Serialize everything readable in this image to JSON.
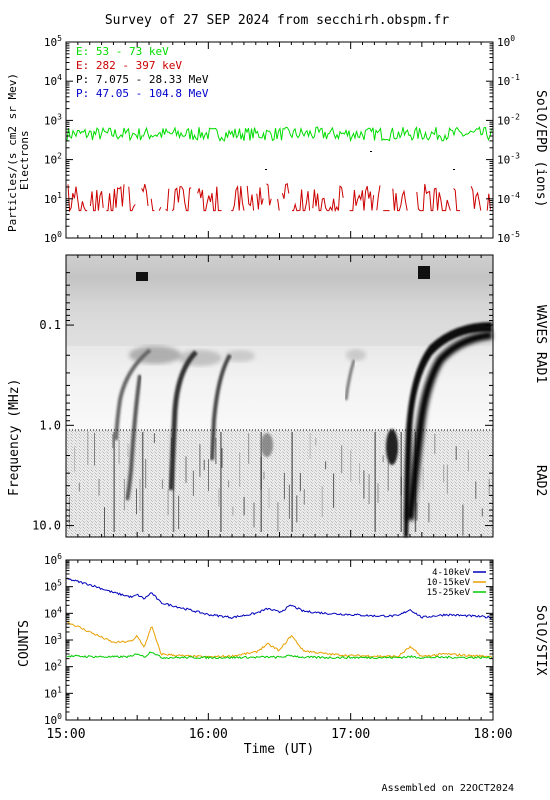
{
  "title": "Survey of 27 SEP 2024 from secchirh.obspm.fr",
  "footer": "Assembled on 22OCT2024",
  "colors": {
    "electrons_low": "#00dd00",
    "electrons_high": "#cc0000",
    "protons_low": "#000000",
    "protons_high": "#0000cc",
    "stix_4_10": "#0000bb",
    "stix_10_15": "#e8a000",
    "stix_15_25": "#00cc00"
  },
  "chart_data": [
    {
      "type": "line",
      "panel": "SolO/EPD",
      "ylabel_line1": "Particles/(s cm2 sr Mev)",
      "ylabel_line2": "Electrons",
      "right_label": "SolO/EPD (ions)",
      "y_scale": "log",
      "ylim": [
        1,
        100000
      ],
      "y2_scale": "log",
      "y2lim": [
        1e-05,
        1
      ],
      "left_tick_labels": [
        "10^0",
        "10^1",
        "10^2",
        "10^3",
        "10^4",
        "10^5"
      ],
      "right_tick_labels": [
        "10^-5",
        "10^-4",
        "10^-3",
        "10^-2",
        "10^-1",
        "10^0"
      ],
      "legend": [
        {
          "label": "E: 53 - 73 keV",
          "color": "#00dd00"
        },
        {
          "label": "E: 282 - 397 keV",
          "color": "#cc0000"
        },
        {
          "label": "P: 7.075 - 28.33 MeV",
          "color": "#000000"
        },
        {
          "label": "P: 47.05 - 104.8 MeV",
          "color": "#0000cc"
        }
      ],
      "series": [
        {
          "name": "E: 53 - 73 keV",
          "typical": 450,
          "range": [
            300,
            700
          ]
        },
        {
          "name": "E: 282 - 397 keV",
          "typical": 10,
          "range": [
            5,
            25
          ]
        }
      ]
    },
    {
      "type": "heatmap",
      "panel": "WAVES RAD1 / RAD2",
      "ylabel": "Frequency (MHz)",
      "y_scale": "log",
      "ylim": [
        0.02,
        13
      ],
      "y_inverted": true,
      "tick_labels": [
        "0.1",
        "1.0",
        "10.0"
      ],
      "right_label_top": "WAVES RAD1",
      "right_label_bottom": "RAD2",
      "radio_bursts_hhmm": [
        "15:20",
        "15:32",
        "15:45",
        "16:05",
        "16:22",
        "16:35",
        "17:10",
        "17:21",
        "17:27"
      ]
    },
    {
      "type": "line",
      "panel": "SolO/STIX",
      "ylabel": "COUNTS",
      "right_label": "SolO/STIX",
      "y_scale": "log",
      "ylim": [
        1,
        1000000
      ],
      "tick_labels": [
        "10^0",
        "10^1",
        "10^2",
        "10^3",
        "10^4",
        "10^5",
        "10^6"
      ],
      "legend": [
        {
          "label": "4-10keV",
          "color": "#0000bb"
        },
        {
          "label": "10-15keV",
          "color": "#e8a000"
        },
        {
          "label": "15-25keV",
          "color": "#00cc00"
        }
      ],
      "series": [
        {
          "name": "4-10keV",
          "x": [
            "15:00",
            "15:10",
            "15:20",
            "15:28",
            "15:30",
            "15:33",
            "15:36",
            "15:40",
            "15:50",
            "16:00",
            "16:10",
            "16:20",
            "16:25",
            "16:30",
            "16:35",
            "16:40",
            "16:50",
            "17:00",
            "17:10",
            "17:20",
            "17:25",
            "17:30",
            "17:40",
            "17:50",
            "18:00"
          ],
          "values": [
            200000,
            120000,
            60000,
            40000,
            50000,
            35000,
            60000,
            25000,
            15000,
            9000,
            7000,
            10000,
            15000,
            11000,
            20000,
            12000,
            10000,
            9000,
            8000,
            8000,
            14000,
            7000,
            9000,
            8000,
            7000
          ]
        },
        {
          "name": "10-15keV",
          "x": [
            "15:00",
            "15:10",
            "15:20",
            "15:28",
            "15:30",
            "15:33",
            "15:36",
            "15:40",
            "15:50",
            "16:00",
            "16:10",
            "16:20",
            "16:25",
            "16:30",
            "16:35",
            "16:40",
            "16:50",
            "17:00",
            "17:10",
            "17:20",
            "17:25",
            "17:30",
            "17:40",
            "17:50",
            "18:00"
          ],
          "values": [
            5000,
            2000,
            800,
            900,
            1500,
            500,
            3500,
            300,
            250,
            230,
            250,
            350,
            700,
            400,
            1500,
            400,
            300,
            260,
            250,
            240,
            550,
            240,
            300,
            260,
            240
          ]
        },
        {
          "name": "15-25keV",
          "x": [
            "15:00",
            "15:10",
            "15:20",
            "15:28",
            "15:30",
            "15:33",
            "15:36",
            "15:40",
            "15:50",
            "16:00",
            "16:10",
            "16:20",
            "16:25",
            "16:30",
            "16:35",
            "16:40",
            "16:50",
            "17:00",
            "17:10",
            "17:20",
            "17:25",
            "17:30",
            "17:40",
            "17:50",
            "18:00"
          ],
          "values": [
            250,
            240,
            230,
            240,
            320,
            230,
            380,
            220,
            220,
            220,
            220,
            225,
            230,
            225,
            260,
            225,
            220,
            220,
            220,
            220,
            235,
            220,
            225,
            220,
            220
          ]
        }
      ],
      "xlabel": "Time (UT)",
      "x_tick_labels": [
        "15:00",
        "16:00",
        "17:00",
        "18:00"
      ]
    }
  ]
}
